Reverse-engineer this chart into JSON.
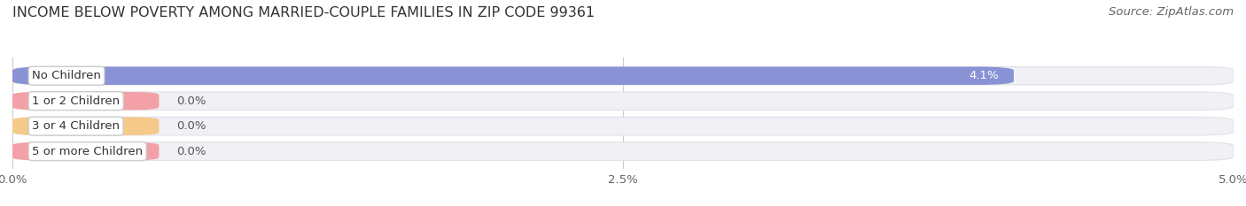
{
  "title": "INCOME BELOW POVERTY AMONG MARRIED-COUPLE FAMILIES IN ZIP CODE 99361",
  "source": "Source: ZipAtlas.com",
  "categories": [
    "No Children",
    "1 or 2 Children",
    "3 or 4 Children",
    "5 or more Children"
  ],
  "values": [
    4.1,
    0.0,
    0.0,
    0.0
  ],
  "bar_colors": [
    "#8892d4",
    "#f4a0a8",
    "#f5c98a",
    "#f4a0a8"
  ],
  "xlim": [
    0,
    5.0
  ],
  "xticks": [
    0.0,
    2.5,
    5.0
  ],
  "xtick_labels": [
    "0.0%",
    "2.5%",
    "5.0%"
  ],
  "background_color": "#ffffff",
  "bar_bg_color": "#f0f0f5",
  "bar_bg_edge_color": "#e0e0e8",
  "title_fontsize": 11.5,
  "tick_fontsize": 9.5,
  "label_fontsize": 9.5,
  "source_fontsize": 9.5,
  "zero_bar_width": 0.6,
  "bar_height": 0.72
}
